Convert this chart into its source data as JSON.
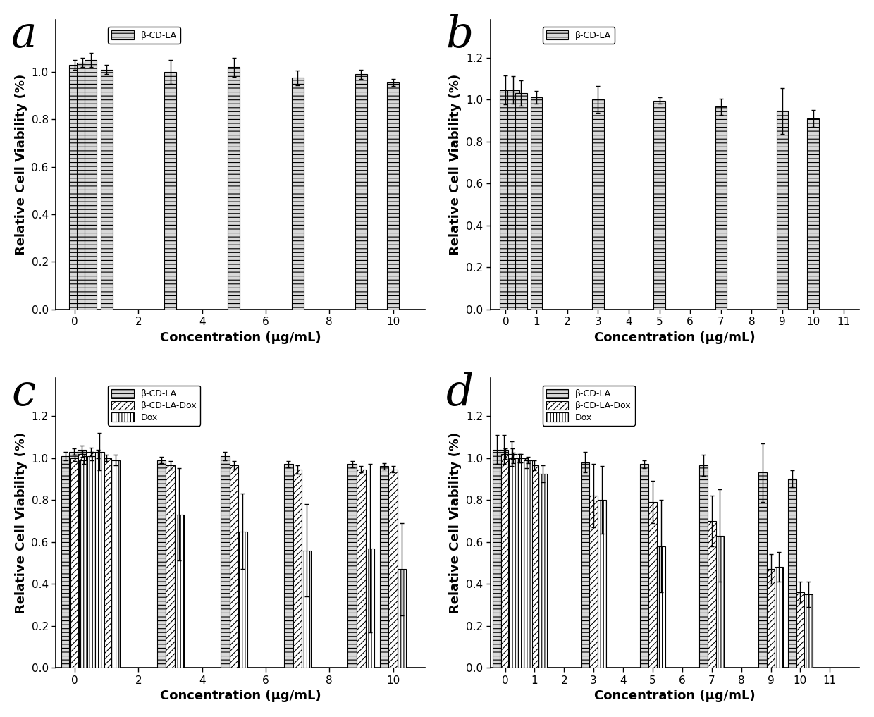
{
  "panel_a": {
    "label": "a",
    "series": {
      "beta_cd_la": {
        "x": [
          0.0,
          0.25,
          0.5,
          1.0,
          3.0,
          5.0,
          7.0,
          9.0,
          10.0
        ],
        "y": [
          1.03,
          1.04,
          1.05,
          1.01,
          1.0,
          1.02,
          0.975,
          0.99,
          0.955
        ],
        "yerr": [
          0.02,
          0.02,
          0.03,
          0.02,
          0.05,
          0.04,
          0.03,
          0.02,
          0.015
        ]
      }
    },
    "xlim": [
      -0.6,
      11.0
    ],
    "ylim": [
      0.0,
      1.22
    ],
    "xticks": [
      0,
      2,
      4,
      6,
      8,
      10
    ],
    "yticks": [
      0.0,
      0.2,
      0.4,
      0.6,
      0.8,
      1.0
    ],
    "xlabel": "Concentration (μg/mL)",
    "ylabel": "Relative Cell Viability (%)",
    "bar_width": 0.38,
    "legend": [
      "β-CD-LA"
    ],
    "legend_keys": [
      "beta_cd_la"
    ]
  },
  "panel_b": {
    "label": "b",
    "series": {
      "beta_cd_la": {
        "x": [
          0.0,
          0.25,
          0.5,
          1.0,
          3.0,
          5.0,
          7.0,
          9.0,
          10.0
        ],
        "y": [
          1.045,
          1.045,
          1.03,
          1.01,
          1.0,
          0.995,
          0.965,
          0.945,
          0.91
        ],
        "yerr": [
          0.07,
          0.065,
          0.06,
          0.03,
          0.065,
          0.015,
          0.04,
          0.11,
          0.04
        ]
      }
    },
    "xlim": [
      -0.5,
      11.5
    ],
    "ylim": [
      0.0,
      1.38
    ],
    "xticks": [
      0,
      1,
      2,
      3,
      4,
      5,
      6,
      7,
      8,
      9,
      10,
      11
    ],
    "yticks": [
      0.0,
      0.2,
      0.4,
      0.6,
      0.8,
      1.0,
      1.2
    ],
    "xlabel": "Concentration (μg/mL)",
    "ylabel": "Relative Cell Viability (%)",
    "bar_width": 0.38,
    "legend": [
      "β-CD-LA"
    ],
    "legend_keys": [
      "beta_cd_la"
    ]
  },
  "panel_c": {
    "label": "c",
    "series": {
      "beta_cd_la": {
        "x": [
          0.0,
          0.25,
          0.5,
          1.0,
          3.0,
          5.0,
          7.0,
          9.0,
          10.0
        ],
        "y": [
          1.01,
          1.03,
          1.04,
          1.02,
          0.99,
          1.01,
          0.97,
          0.97,
          0.96
        ],
        "yerr": [
          0.02,
          0.015,
          0.02,
          0.02,
          0.015,
          0.02,
          0.015,
          0.015,
          0.015
        ]
      },
      "beta_cd_la_dox": {
        "x": [
          0.0,
          0.25,
          0.5,
          1.0,
          3.0,
          5.0,
          7.0,
          9.0,
          10.0
        ],
        "y": [
          1.0,
          1.02,
          1.03,
          1.0,
          0.965,
          0.965,
          0.945,
          0.945,
          0.945
        ],
        "yerr": [
          0.015,
          0.015,
          0.02,
          0.015,
          0.02,
          0.02,
          0.02,
          0.015,
          0.015
        ]
      },
      "dox": {
        "x": [
          0.0,
          0.25,
          0.5,
          1.0,
          3.0,
          5.0,
          7.0,
          9.0,
          10.0
        ],
        "y": [
          0.99,
          1.01,
          1.03,
          0.99,
          0.73,
          0.65,
          0.56,
          0.57,
          0.47
        ],
        "yerr": [
          0.02,
          0.02,
          0.09,
          0.025,
          0.22,
          0.18,
          0.22,
          0.4,
          0.22
        ]
      }
    },
    "xlim": [
      -0.6,
      11.0
    ],
    "ylim": [
      0.0,
      1.38
    ],
    "xticks": [
      0,
      2,
      4,
      6,
      8,
      10
    ],
    "yticks": [
      0.0,
      0.2,
      0.4,
      0.6,
      0.8,
      1.0,
      1.2
    ],
    "xlabel": "Concentration (μg/mL)",
    "ylabel": "Relative Cell Viability (%)",
    "bar_width": 0.28,
    "legend": [
      "β-CD-LA",
      "β-CD-LA-Dox",
      "Dox"
    ],
    "legend_keys": [
      "beta_cd_la",
      "beta_cd_la_dox",
      "dox"
    ]
  },
  "panel_d": {
    "label": "d",
    "series": {
      "beta_cd_la": {
        "x": [
          0.0,
          0.25,
          0.5,
          1.0,
          3.0,
          5.0,
          7.0,
          9.0,
          10.0
        ],
        "y": [
          1.04,
          1.04,
          1.02,
          0.975,
          0.98,
          0.97,
          0.965,
          0.93,
          0.9
        ],
        "yerr": [
          0.07,
          0.07,
          0.06,
          0.025,
          0.05,
          0.02,
          0.05,
          0.14,
          0.04
        ]
      },
      "beta_cd_la_dox": {
        "x": [
          0.0,
          0.25,
          0.5,
          1.0,
          3.0,
          5.0,
          7.0,
          9.0,
          10.0
        ],
        "y": [
          1.02,
          1.02,
          1.0,
          0.965,
          0.82,
          0.79,
          0.7,
          0.47,
          0.36
        ],
        "yerr": [
          0.025,
          0.025,
          0.02,
          0.025,
          0.15,
          0.1,
          0.12,
          0.07,
          0.05
        ]
      },
      "dox": {
        "x": [
          0.0,
          0.25,
          0.5,
          1.0,
          3.0,
          5.0,
          7.0,
          9.0,
          10.0
        ],
        "y": [
          1.0,
          1.0,
          0.99,
          0.925,
          0.8,
          0.58,
          0.63,
          0.48,
          0.35
        ],
        "yerr": [
          0.025,
          0.02,
          0.015,
          0.04,
          0.16,
          0.22,
          0.22,
          0.07,
          0.06
        ]
      }
    },
    "xlim": [
      -0.5,
      12.0
    ],
    "ylim": [
      0.0,
      1.38
    ],
    "xticks": [
      0,
      1,
      2,
      3,
      4,
      5,
      6,
      7,
      8,
      9,
      10,
      11
    ],
    "yticks": [
      0.0,
      0.2,
      0.4,
      0.6,
      0.8,
      1.0,
      1.2
    ],
    "xlabel": "Concentration (μg/mL)",
    "ylabel": "Relative Cell Viability (%)",
    "bar_width": 0.28,
    "legend": [
      "β-CD-LA",
      "β-CD-LA-Dox",
      "Dox"
    ],
    "legend_keys": [
      "beta_cd_la",
      "beta_cd_la_dox",
      "dox"
    ]
  },
  "hatches": {
    "beta_cd_la": "---",
    "beta_cd_la_dox": "////",
    "dox": "||||"
  },
  "facecolors": {
    "beta_cd_la": "#d8d8d8",
    "beta_cd_la_dox": "white",
    "dox": "white"
  },
  "edgecolor": "black",
  "label_fontsize": 13,
  "tick_fontsize": 11,
  "panel_label_fontsize": 44
}
